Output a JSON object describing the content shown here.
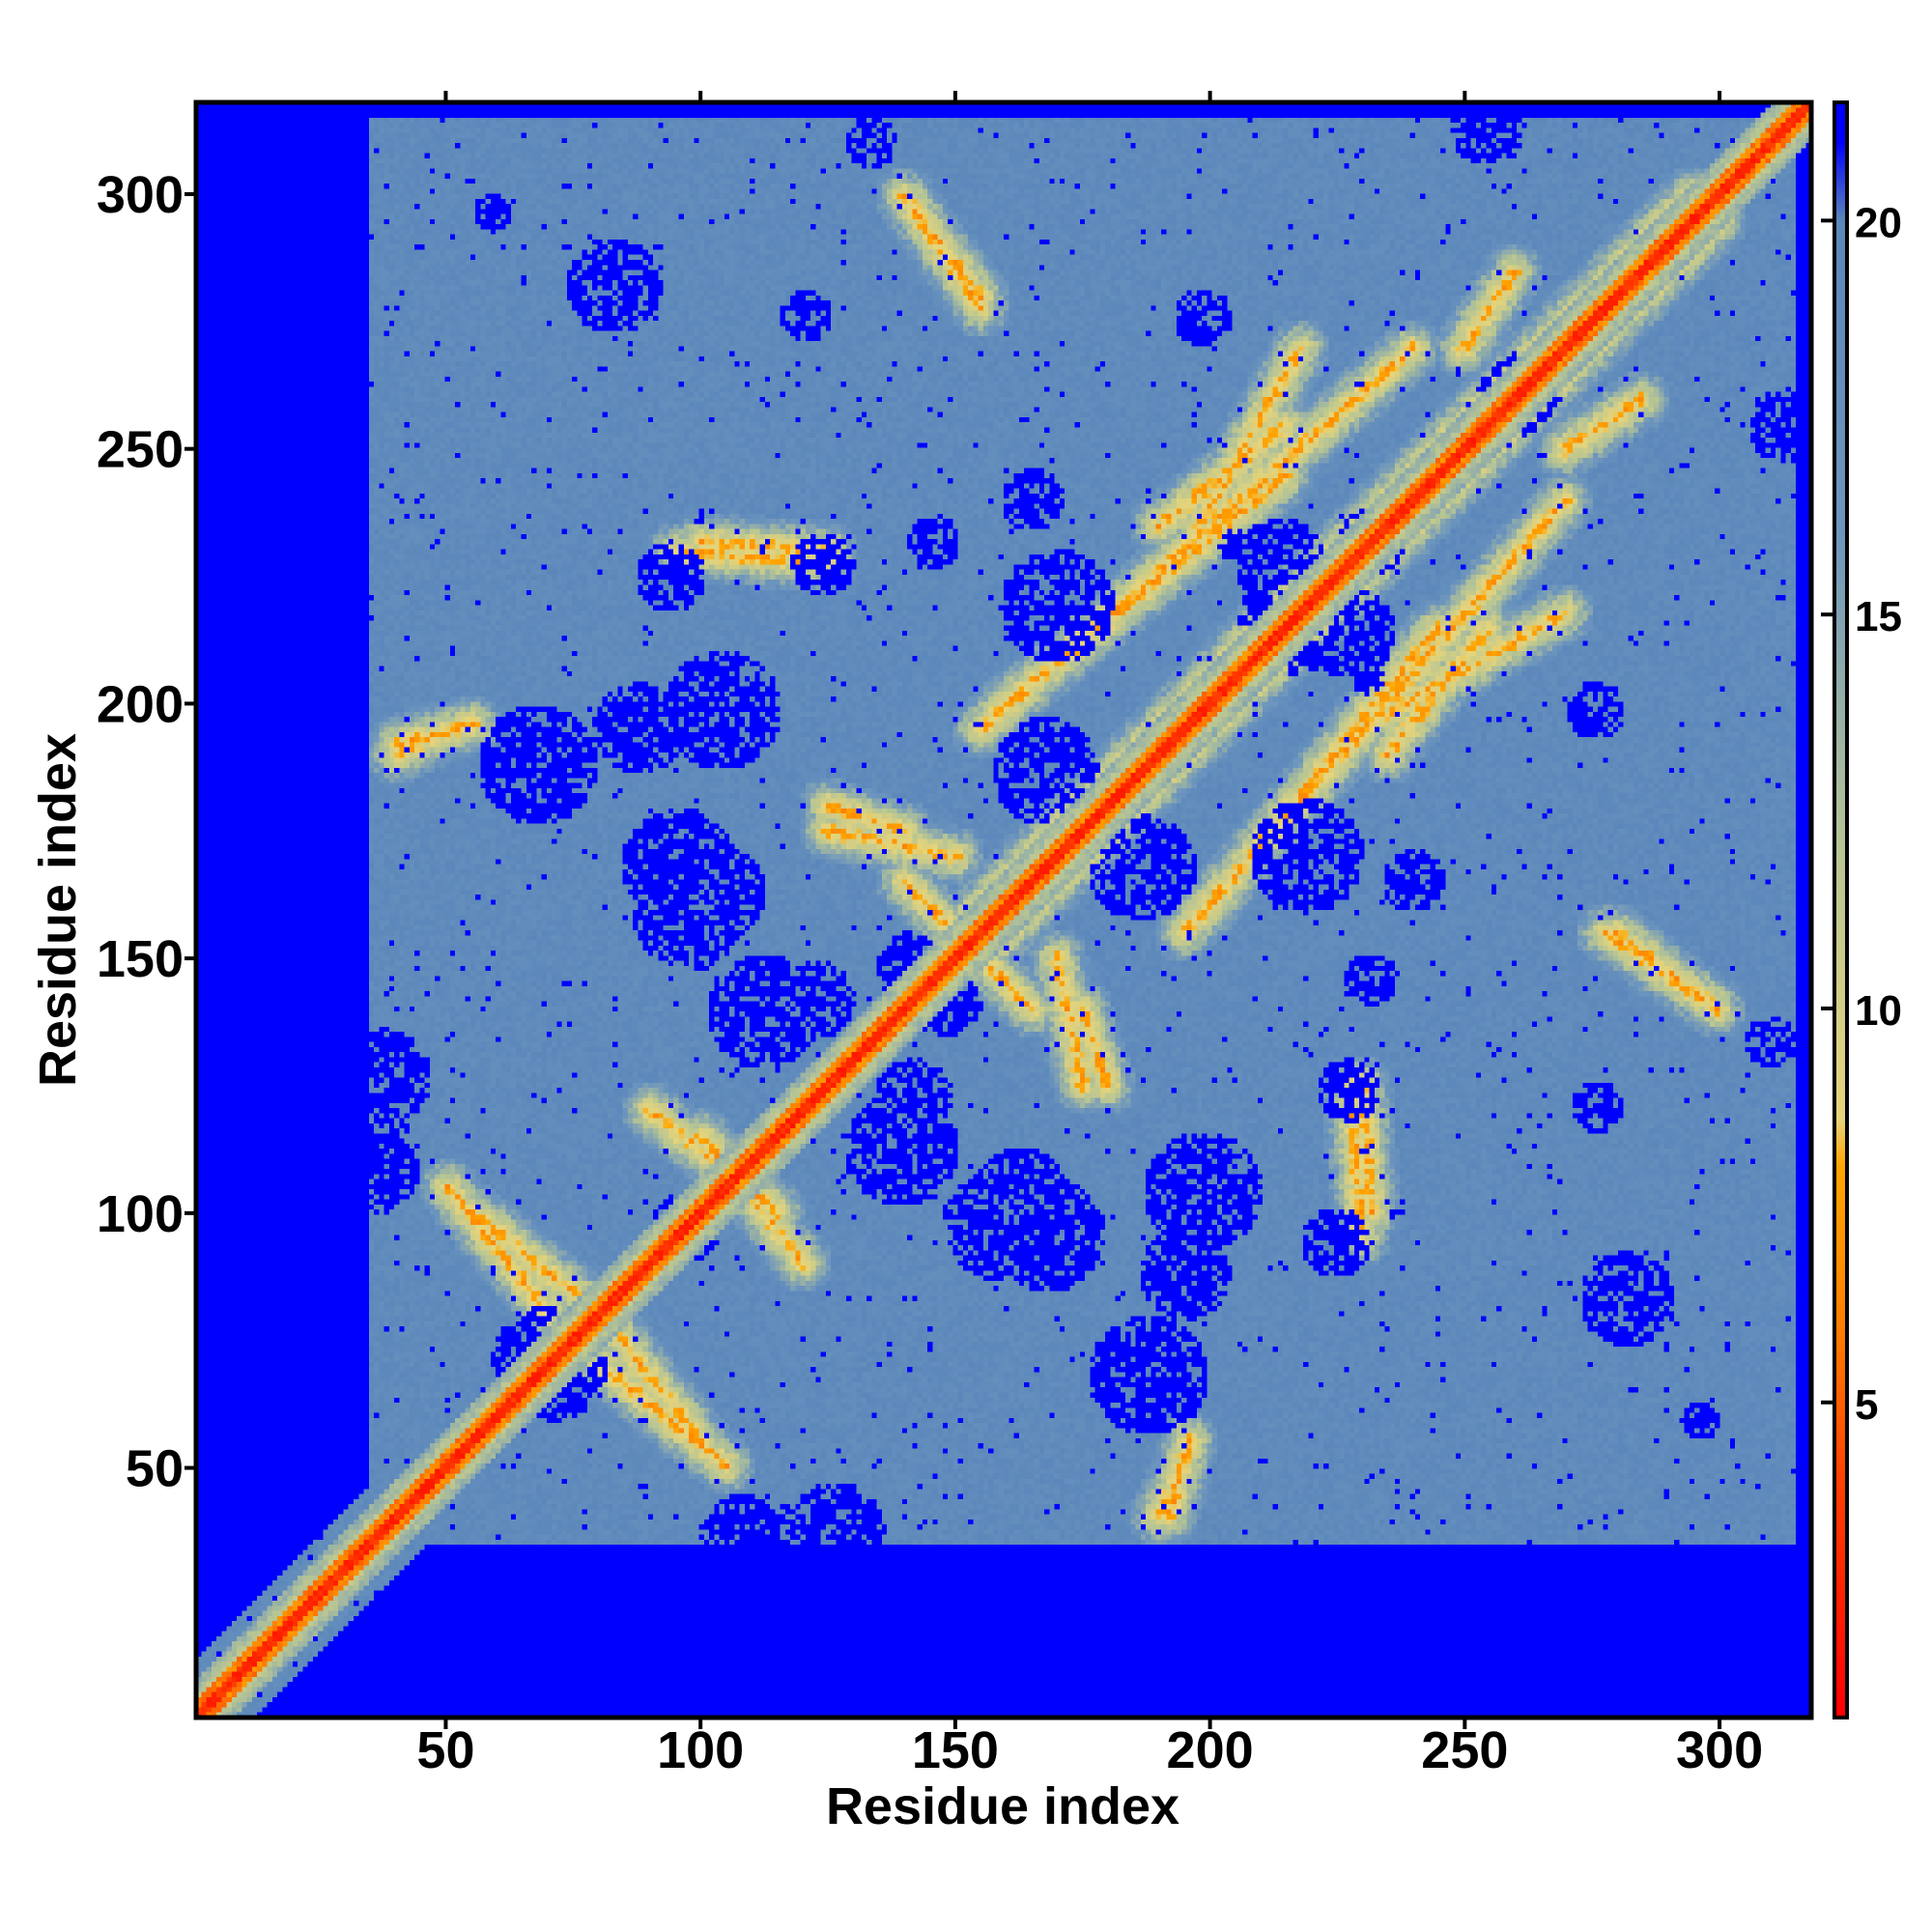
{
  "chart_data": {
    "type": "heatmap",
    "title": "",
    "xlabel": "Residue index",
    "ylabel": "Residue index",
    "xlim": [
      1,
      318
    ],
    "ylim": [
      1,
      318
    ],
    "x_ticks": [
      50,
      100,
      150,
      200,
      250,
      300
    ],
    "y_ticks": [
      50,
      100,
      150,
      200,
      250,
      300
    ],
    "x_tick_labels": [
      "50",
      "100",
      "150",
      "200",
      "250",
      "300"
    ],
    "y_tick_labels": [
      "50",
      "100",
      "150",
      "200",
      "250",
      "300"
    ],
    "value_description": "pairwise residue distance map (symmetric), clipped at 21",
    "colorbar": {
      "range": [
        1,
        21.5
      ],
      "ticks": [
        5,
        10,
        15,
        20
      ],
      "tick_labels": [
        "5",
        "10",
        "15",
        "20"
      ],
      "stops": [
        {
          "value": 1.0,
          "color": "#ff0000"
        },
        {
          "value": 4.0,
          "color": "#ff4000"
        },
        {
          "value": 6.0,
          "color": "#ff7f00"
        },
        {
          "value": 8.0,
          "color": "#ffa500"
        },
        {
          "value": 8.6,
          "color": "#e6d47a"
        },
        {
          "value": 12.0,
          "color": "#b7c594"
        },
        {
          "value": 16.0,
          "color": "#6e96bd"
        },
        {
          "value": 20.0,
          "color": "#5b87bb"
        },
        {
          "value": 21.0,
          "color": "#0000ff"
        }
      ]
    },
    "colors": {
      "far": "#0000ff",
      "mid": "#5b87bb",
      "near": "#b7c594",
      "close": "#ffa500",
      "contact": "#ff0000"
    },
    "structured_region": {
      "x_range": [
        35,
        312
      ],
      "y_range": [
        37,
        315
      ]
    },
    "contact_features": [
      {
        "type": "diagonal",
        "from": [
          1,
          1
        ],
        "to": [
          318,
          318
        ]
      },
      {
        "type": "band",
        "from": [
          150,
          155
        ],
        "to": [
          295,
          300
        ]
      },
      {
        "type": "band",
        "from": [
          195,
          155
        ],
        "to": [
          270,
          240
        ]
      },
      {
        "type": "band",
        "from": [
          235,
          198
        ],
        "to": [
          270,
          218
        ]
      },
      {
        "type": "band",
        "from": [
          190,
          235
        ],
        "to": [
          215,
          255
        ]
      },
      {
        "type": "band",
        "from": [
          160,
          200
        ],
        "to": [
          215,
          245
        ]
      },
      {
        "type": "band",
        "from": [
          140,
          165
        ],
        "to": [
          160,
          145
        ]
      },
      {
        "type": "band",
        "from": [
          140,
          300
        ],
        "to": [
          155,
          280
        ]
      },
      {
        "type": "band",
        "from": [
          95,
          230
        ],
        "to": [
          125,
          228
        ]
      },
      {
        "type": "band",
        "from": [
          40,
          192
        ],
        "to": [
          55,
          196
        ]
      },
      {
        "type": "band",
        "from": [
          55,
          100
        ],
        "to": [
          80,
          80
        ]
      },
      {
        "type": "band",
        "from": [
          80,
          70
        ],
        "to": [
          105,
          50
        ]
      },
      {
        "type": "band",
        "from": [
          100,
          115
        ],
        "to": [
          120,
          90
        ]
      },
      {
        "type": "band",
        "from": [
          125,
          175
        ],
        "to": [
          150,
          170
        ]
      },
      {
        "type": "band",
        "from": [
          175,
          140
        ],
        "to": [
          180,
          125
        ]
      },
      {
        "type": "band",
        "from": [
          230,
          125
        ],
        "to": [
          232,
          100
        ]
      },
      {
        "type": "band",
        "from": [
          278,
          155
        ],
        "to": [
          300,
          140
        ]
      },
      {
        "type": "band",
        "from": [
          190,
          40
        ],
        "to": [
          195,
          50
        ]
      },
      {
        "type": "band",
        "from": [
          270,
          250
        ],
        "to": [
          285,
          260
        ]
      }
    ]
  }
}
